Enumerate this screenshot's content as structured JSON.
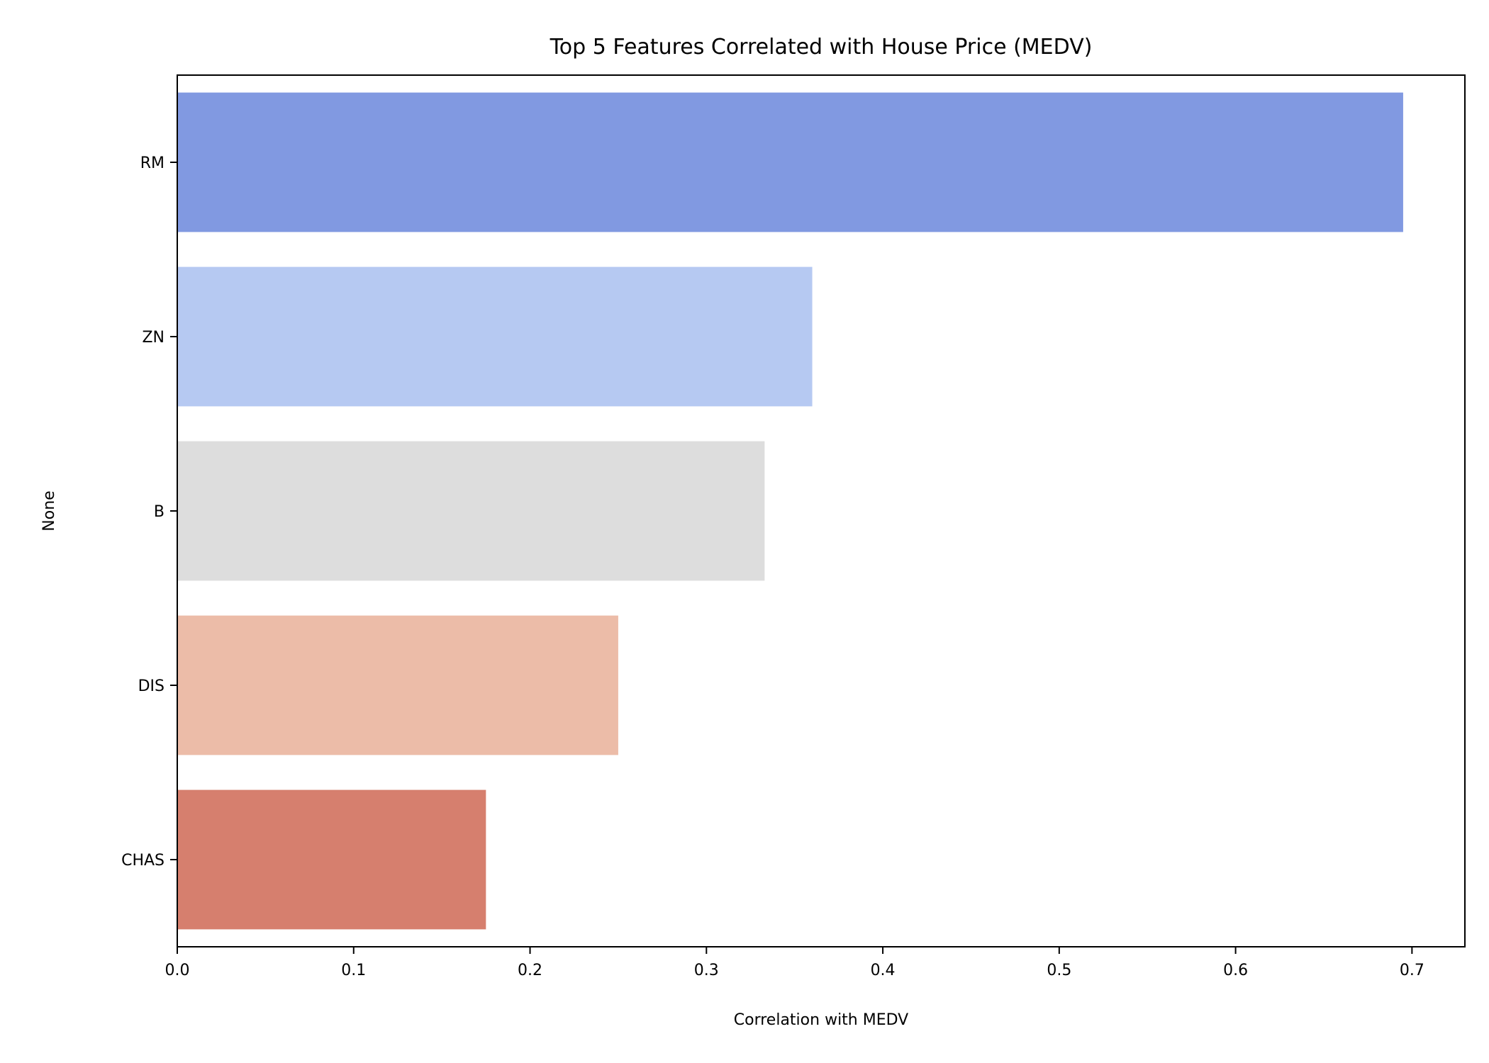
{
  "chart_data": {
    "type": "bar",
    "orientation": "horizontal",
    "title": "Top 5 Features Correlated with House Price (MEDV)",
    "xlabel": "Correlation with MEDV",
    "ylabel": "None",
    "categories": [
      "RM",
      "ZN",
      "B",
      "DIS",
      "CHAS"
    ],
    "values": [
      0.695,
      0.36,
      0.333,
      0.25,
      0.175
    ],
    "colors": [
      "#8199e1",
      "#b6c9f2",
      "#dddddd",
      "#ecbca8",
      "#d67f6e"
    ],
    "xlim": [
      0,
      0.73
    ],
    "xticks": [
      0.0,
      0.1,
      0.2,
      0.3,
      0.4,
      0.5,
      0.6,
      0.7
    ],
    "xtick_labels": [
      "0.0",
      "0.1",
      "0.2",
      "0.3",
      "0.4",
      "0.5",
      "0.6",
      "0.7"
    ],
    "grid": false,
    "legend": "none"
  }
}
